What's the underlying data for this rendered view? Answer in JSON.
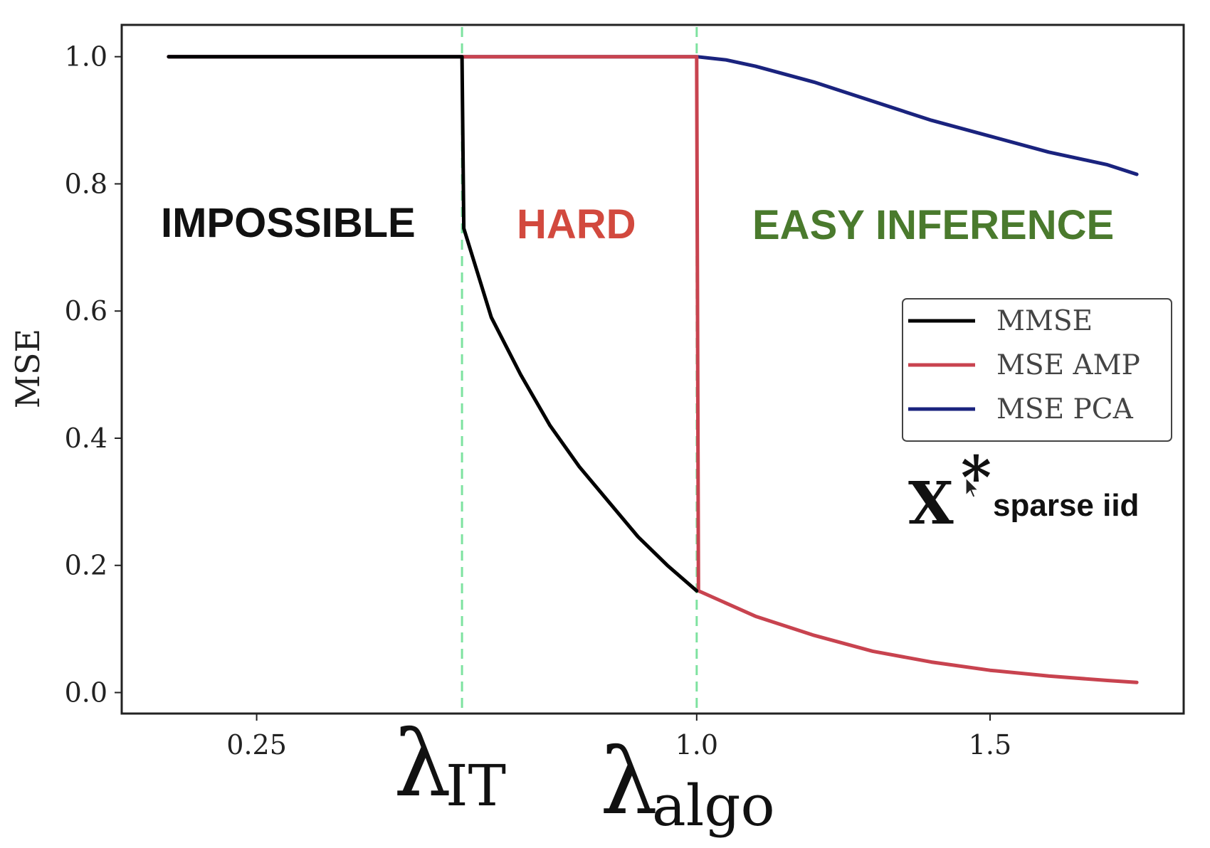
{
  "chart_data": {
    "type": "line",
    "title": "",
    "xlabel": "",
    "ylabel": "MSE",
    "xlim": [
      0.02,
      1.83
    ],
    "ylim": [
      -0.033,
      1.05
    ],
    "xticks": [
      {
        "v": 0.25,
        "label": "0.25"
      },
      {
        "v": 1.0,
        "label": "1.0"
      },
      {
        "v": 1.5,
        "label": "1.5"
      }
    ],
    "yticks": [
      {
        "v": 0.0,
        "label": "0.0"
      },
      {
        "v": 0.2,
        "label": "0.2"
      },
      {
        "v": 0.4,
        "label": "0.4"
      },
      {
        "v": 0.6,
        "label": "0.6"
      },
      {
        "v": 0.8,
        "label": "0.8"
      },
      {
        "v": 1.0,
        "label": "1.0"
      }
    ],
    "grid": false,
    "legend_position": "center-right",
    "series": [
      {
        "name": "MMSE",
        "color": "#000000",
        "x": [
          0.1,
          0.6,
          0.603,
          0.65,
          0.7,
          0.75,
          0.8,
          0.85,
          0.9,
          0.95,
          1.0
        ],
        "y": [
          1.0,
          1.0,
          0.73,
          0.59,
          0.5,
          0.42,
          0.355,
          0.3,
          0.245,
          0.2,
          0.16
        ]
      },
      {
        "name": "MSE AMP",
        "color": "#c8434f",
        "x": [
          0.1,
          1.0,
          1.003,
          1.1,
          1.2,
          1.3,
          1.4,
          1.5,
          1.6,
          1.7,
          1.75
        ],
        "y": [
          1.0,
          1.0,
          0.16,
          0.12,
          0.09,
          0.065,
          0.048,
          0.035,
          0.026,
          0.019,
          0.016
        ]
      },
      {
        "name": "MSE PCA",
        "color": "#1a237e",
        "x": [
          0.1,
          1.0,
          1.05,
          1.1,
          1.2,
          1.3,
          1.4,
          1.5,
          1.6,
          1.7,
          1.75
        ],
        "y": [
          1.0,
          1.0,
          0.995,
          0.985,
          0.96,
          0.93,
          0.9,
          0.875,
          0.85,
          0.83,
          0.815
        ]
      }
    ],
    "vlines": [
      {
        "x": 0.6,
        "color": "#7ee2a0",
        "label": "λ",
        "sub": "IT"
      },
      {
        "x": 1.0,
        "color": "#7ee2a0",
        "label": "λ",
        "sub": "algo"
      }
    ],
    "regions": [
      {
        "label": "IMPOSSIBLE",
        "color": "#111111"
      },
      {
        "label": "HARD",
        "color": "#d2493e"
      },
      {
        "label": "EASY INFERENCE",
        "color": "#4a7a2d"
      }
    ],
    "annotation": {
      "symbol": "X",
      "superscript": "*",
      "text": "sparse iid"
    }
  }
}
